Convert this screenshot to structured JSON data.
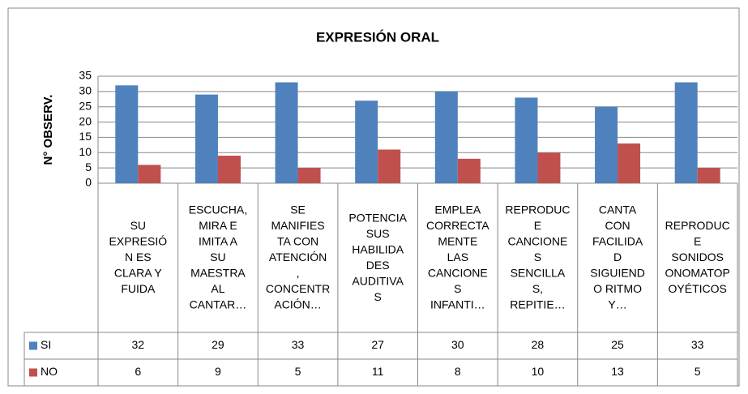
{
  "chart_data": {
    "type": "bar",
    "title": "EXPRESIÓN ORAL",
    "y_label": "N° OBSERV.",
    "categories": [
      "SU EXPRESIÓN ES CLARA Y FUIDA",
      "ESCUCHA, MIRA E IMITA A SU MAESTRA AL CANTAR…",
      "SE MANIFIESTA CON ATENCIÓN, CONCENTRACIÓN…",
      "POTENCIA SUS HABILIDADES AUDITIVAS",
      "EMPLEA CORRECTAMENTE LAS CANCIONES INFANTI…",
      "REPRODUCE CANCIONES SENCILLAS, REPITIE…",
      "CANTA CON FACILIDAD SIGUIENDO RITMO Y…",
      "REPRODUCE SONIDOS ONOMATOPOYÉTICOS"
    ],
    "series": [
      {
        "name": "SI",
        "color": "#4f81bd",
        "values": [
          32,
          29,
          33,
          27,
          30,
          28,
          25,
          33
        ]
      },
      {
        "name": "NO",
        "color": "#c0504d",
        "values": [
          6,
          9,
          5,
          11,
          8,
          10,
          13,
          5
        ]
      }
    ],
    "ylim": [
      0,
      35
    ],
    "yticks": [
      0,
      5,
      10,
      15,
      20,
      25,
      30,
      35
    ],
    "grid": true
  }
}
